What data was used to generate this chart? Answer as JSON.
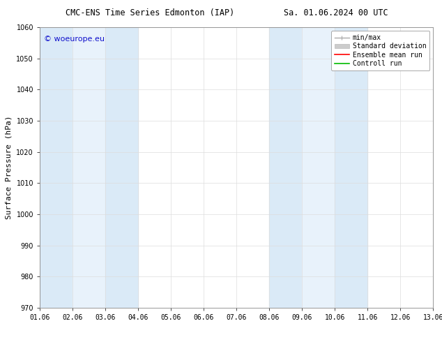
{
  "title_left": "CMC-ENS Time Series Edmonton (IAP)",
  "title_right": "Sa. 01.06.2024 00 UTC",
  "ylabel": "Surface Pressure (hPa)",
  "ylim": [
    970,
    1060
  ],
  "yticks": [
    970,
    980,
    990,
    1000,
    1010,
    1020,
    1030,
    1040,
    1050,
    1060
  ],
  "xlim_start": 0,
  "xlim_end": 12,
  "xtick_labels": [
    "01.06",
    "02.06",
    "03.06",
    "04.06",
    "05.06",
    "06.06",
    "07.06",
    "08.06",
    "09.06",
    "10.06",
    "11.06",
    "12.06",
    "13.06"
  ],
  "shaded_bands": [
    {
      "x_start": 0,
      "x_end": 1,
      "color": "#daeaf7"
    },
    {
      "x_start": 1,
      "x_end": 2,
      "color": "#e8f2fb"
    },
    {
      "x_start": 2,
      "x_end": 3,
      "color": "#daeaf7"
    },
    {
      "x_start": 7,
      "x_end": 8,
      "color": "#daeaf7"
    },
    {
      "x_start": 8,
      "x_end": 9,
      "color": "#e8f2fb"
    },
    {
      "x_start": 9,
      "x_end": 10,
      "color": "#daeaf7"
    }
  ],
  "watermark": "© woeurope.eu",
  "watermark_color": "#1111cc",
  "legend_entries": [
    {
      "label": "min/max",
      "color": "#aaaaaa",
      "lw": 1.0,
      "style": "minmax"
    },
    {
      "label": "Standard deviation",
      "color": "#cccccc",
      "lw": 5,
      "style": "fill"
    },
    {
      "label": "Ensemble mean run",
      "color": "#ff0000",
      "lw": 1.2,
      "style": "line"
    },
    {
      "label": "Controll run",
      "color": "#00bb00",
      "lw": 1.2,
      "style": "line"
    }
  ],
  "bg_color": "#ffffff",
  "grid_color": "#dddddd",
  "title_fontsize": 8.5,
  "ylabel_fontsize": 8,
  "tick_fontsize": 7,
  "watermark_fontsize": 8,
  "legend_fontsize": 7
}
